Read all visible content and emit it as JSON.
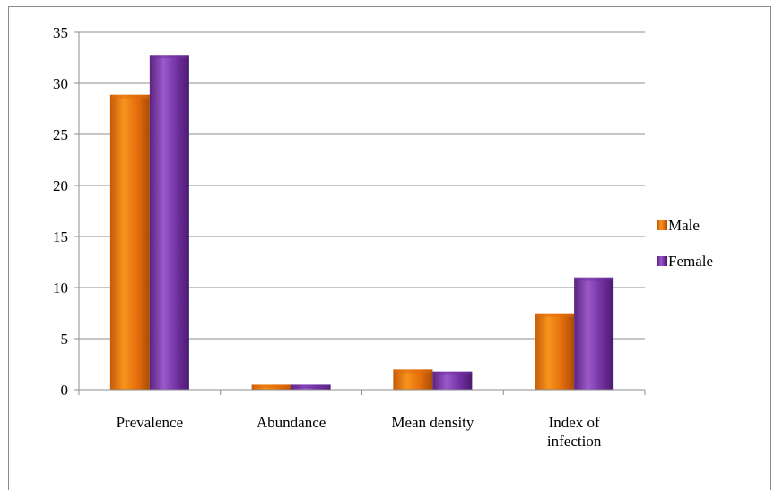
{
  "chart_data": {
    "type": "bar",
    "categories": [
      "Prevalence",
      "Abundance",
      "Mean density",
      "Index of infection"
    ],
    "category_lines": [
      [
        "Prevalence"
      ],
      [
        "Abundance"
      ],
      [
        "Mean density"
      ],
      [
        "Index of",
        "infection"
      ]
    ],
    "series": [
      {
        "name": "Male",
        "values": [
          28.9,
          0.5,
          2.0,
          7.5
        ],
        "color": "#e46c0a"
      },
      {
        "name": "Female",
        "values": [
          32.8,
          0.5,
          1.8,
          11.0
        ],
        "color": "#7030a0"
      }
    ],
    "y_ticks": [
      "0",
      "5",
      "10",
      "15",
      "20",
      "25",
      "30",
      "35"
    ],
    "ylim": [
      0,
      35
    ],
    "grid": true,
    "legend_position": "right"
  }
}
